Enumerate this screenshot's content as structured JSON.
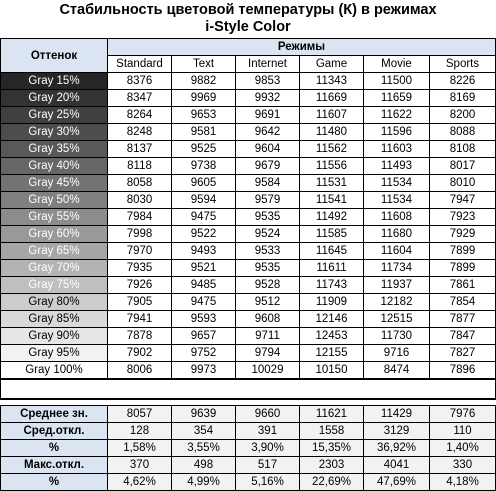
{
  "title": {
    "line1": "Стабильность цветовой температуры (К) в режимах",
    "line2": "i-Style Color"
  },
  "header": {
    "shade_label": "Оттенок",
    "modes_label": "Режимы",
    "columns": [
      "Standard",
      "Text",
      "Internet",
      "Game",
      "Movie",
      "Sports"
    ]
  },
  "rows": [
    {
      "label": "Gray 15%",
      "bg": "#262626",
      "fg": "#ffffff",
      "values": [
        "8376",
        "9882",
        "9853",
        "11343",
        "11500",
        "8226"
      ]
    },
    {
      "label": "Gray 20%",
      "bg": "#333333",
      "fg": "#ffffff",
      "values": [
        "8347",
        "9969",
        "9932",
        "11669",
        "11659",
        "8169"
      ]
    },
    {
      "label": "Gray 25%",
      "bg": "#404040",
      "fg": "#ffffff",
      "values": [
        "8264",
        "9653",
        "9691",
        "11607",
        "11622",
        "8200"
      ]
    },
    {
      "label": "Gray 30%",
      "bg": "#4d4d4d",
      "fg": "#ffffff",
      "values": [
        "8248",
        "9581",
        "9642",
        "11480",
        "11596",
        "8088"
      ]
    },
    {
      "label": "Gray 35%",
      "bg": "#595959",
      "fg": "#ffffff",
      "values": [
        "8137",
        "9525",
        "9604",
        "11562",
        "11603",
        "8108"
      ]
    },
    {
      "label": "Gray 40%",
      "bg": "#666666",
      "fg": "#ffffff",
      "values": [
        "8118",
        "9738",
        "9679",
        "11556",
        "11493",
        "8017"
      ]
    },
    {
      "label": "Gray 45%",
      "bg": "#737373",
      "fg": "#ffffff",
      "values": [
        "8058",
        "9605",
        "9584",
        "11531",
        "11534",
        "8010"
      ]
    },
    {
      "label": "Gray 50%",
      "bg": "#808080",
      "fg": "#ffffff",
      "values": [
        "8030",
        "9594",
        "9579",
        "11541",
        "11534",
        "7947"
      ]
    },
    {
      "label": "Gray 55%",
      "bg": "#8c8c8c",
      "fg": "#ffffff",
      "values": [
        "7984",
        "9475",
        "9535",
        "11492",
        "11608",
        "7923"
      ]
    },
    {
      "label": "Gray 60%",
      "bg": "#999999",
      "fg": "#ffffff",
      "values": [
        "7998",
        "9522",
        "9524",
        "11585",
        "11680",
        "7929"
      ]
    },
    {
      "label": "Gray 65%",
      "bg": "#a6a6a6",
      "fg": "#ffffff",
      "values": [
        "7970",
        "9493",
        "9533",
        "11645",
        "11604",
        "7899"
      ]
    },
    {
      "label": "Gray 70%",
      "bg": "#b3b3b3",
      "fg": "#ffffff",
      "values": [
        "7935",
        "9521",
        "9535",
        "11611",
        "11734",
        "7899"
      ]
    },
    {
      "label": "Gray 75%",
      "bg": "#bfbfbf",
      "fg": "#ffffff",
      "values": [
        "7926",
        "9485",
        "9528",
        "11743",
        "11937",
        "7861"
      ]
    },
    {
      "label": "Gray 80%",
      "bg": "#cccccc",
      "fg": "#000000",
      "values": [
        "7905",
        "9475",
        "9512",
        "11909",
        "12182",
        "7854"
      ]
    },
    {
      "label": "Gray 85%",
      "bg": "#d9d9d9",
      "fg": "#000000",
      "values": [
        "7941",
        "9593",
        "9608",
        "12146",
        "12515",
        "7877"
      ]
    },
    {
      "label": "Gray 90%",
      "bg": "#e6e6e6",
      "fg": "#000000",
      "values": [
        "7878",
        "9657",
        "9711",
        "12453",
        "11730",
        "7847"
      ]
    },
    {
      "label": "Gray 95%",
      "bg": "#f2f2f2",
      "fg": "#000000",
      "values": [
        "7902",
        "9752",
        "9794",
        "12155",
        "9716",
        "7827"
      ]
    },
    {
      "label": "Gray 100%",
      "bg": "#ffffff",
      "fg": "#000000",
      "values": [
        "8006",
        "9973",
        "10029",
        "10150",
        "8474",
        "7896"
      ]
    }
  ],
  "stats": [
    {
      "label": "Среднее зн.",
      "values": [
        "8057",
        "9639",
        "9660",
        "11621",
        "11429",
        "7976"
      ]
    },
    {
      "label": "Сред.откл.",
      "values": [
        "128",
        "354",
        "391",
        "1558",
        "3129",
        "110"
      ]
    },
    {
      "label": "%",
      "values": [
        "1,58%",
        "3,55%",
        "3,90%",
        "15,35%",
        "36,92%",
        "1,40%"
      ]
    },
    {
      "label": "Макс.откл.",
      "values": [
        "370",
        "498",
        "517",
        "2303",
        "4041",
        "330"
      ]
    },
    {
      "label": "%",
      "values": [
        "4,62%",
        "4,99%",
        "5,16%",
        "22,69%",
        "47,69%",
        "4,18%"
      ]
    }
  ]
}
